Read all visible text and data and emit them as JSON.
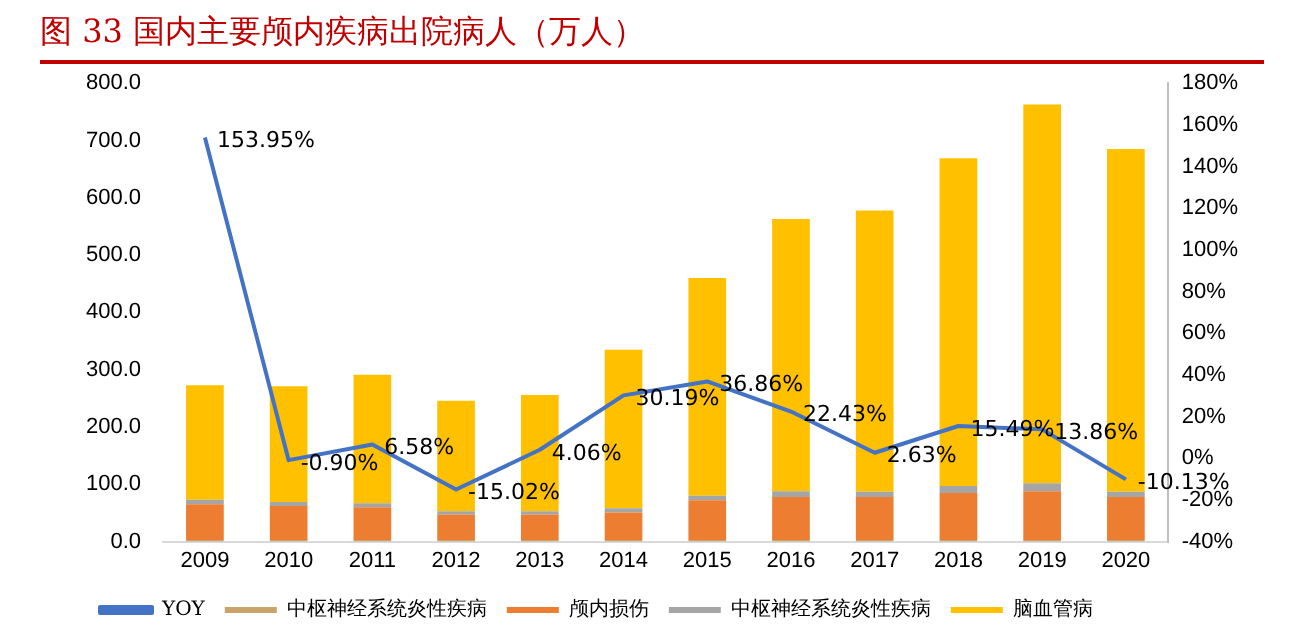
{
  "chart_data": {
    "type": "bar",
    "title": "图 33 国内主要颅内疾病出院病人（万人）",
    "categories": [
      "2009",
      "2010",
      "2011",
      "2012",
      "2013",
      "2014",
      "2015",
      "2016",
      "2017",
      "2018",
      "2019",
      "2020"
    ],
    "stacked": true,
    "legend": "bottom",
    "grid": false,
    "marker": "none",
    "ylim": [
      0,
      800
    ],
    "yticks": [
      {
        "value": 0,
        "label": "0.0"
      },
      {
        "value": 100,
        "label": "100.0"
      },
      {
        "value": 200,
        "label": "200.0"
      },
      {
        "value": 300,
        "label": "300.0"
      },
      {
        "value": 400,
        "label": "400.0"
      },
      {
        "value": 500,
        "label": "500.0"
      },
      {
        "value": 600,
        "label": "600.0"
      },
      {
        "value": 700,
        "label": "700.0"
      },
      {
        "value": 800,
        "label": "800.0"
      }
    ],
    "y2lim": [
      -40,
      180
    ],
    "y2ticks": [
      {
        "value": -40,
        "label": "-40%"
      },
      {
        "value": -20,
        "label": "-20%"
      },
      {
        "value": 0,
        "label": "0%"
      },
      {
        "value": 20,
        "label": "20%"
      },
      {
        "value": 40,
        "label": "40%"
      },
      {
        "value": 60,
        "label": "60%"
      },
      {
        "value": 80,
        "label": "80%"
      },
      {
        "value": 100,
        "label": "100%"
      },
      {
        "value": 120,
        "label": "120%"
      },
      {
        "value": 140,
        "label": "140%"
      },
      {
        "value": 160,
        "label": "160%"
      },
      {
        "value": 180,
        "label": "180%"
      }
    ],
    "series": [
      {
        "name": "中枢神经系统炎性疾病",
        "color": "#c9a46a",
        "values": [
          3,
          3,
          3,
          3,
          3,
          3,
          3,
          3,
          3,
          3,
          3,
          3
        ]
      },
      {
        "name": "颅内损伤",
        "color": "#ed7d31",
        "values": [
          62,
          59,
          57,
          44,
          44,
          48,
          69,
          75,
          75,
          82,
          85,
          75
        ]
      },
      {
        "name": "中枢神经系统炎性疾病",
        "color": "#a5a5a5",
        "values": [
          8,
          7,
          7,
          6,
          6,
          7,
          8,
          10,
          9,
          12,
          14,
          9
        ]
      },
      {
        "name": "脑血管病",
        "color": "#ffc000",
        "values": [
          200,
          202,
          224,
          193,
          203,
          277,
          380,
          475,
          491,
          572,
          661,
          598
        ]
      },
      {
        "name": "YOY",
        "type": "line",
        "axis": "y2",
        "color": "#4472c4",
        "values": [
          153.95,
          -0.9,
          6.58,
          -15.02,
          4.06,
          30.19,
          36.86,
          22.43,
          2.63,
          15.49,
          13.86,
          -10.13
        ],
        "value_labels": [
          "153.95%",
          "-0.90%",
          "6.58%",
          "-15.02%",
          "4.06%",
          "30.19%",
          "36.86%",
          "22.43%",
          "2.63%",
          "15.49%",
          "13.86%",
          "-10.13%"
        ]
      }
    ]
  }
}
